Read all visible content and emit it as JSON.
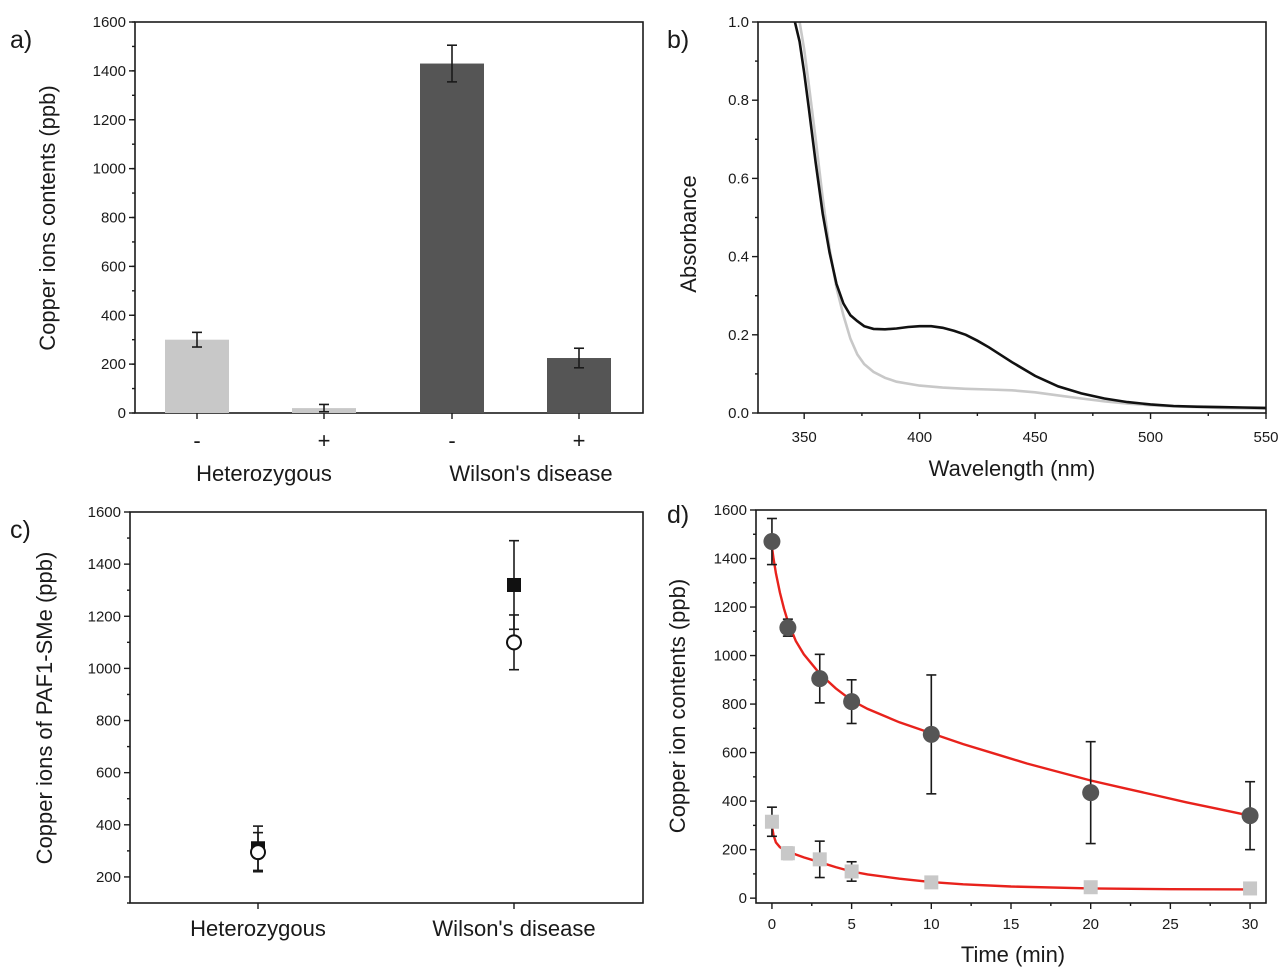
{
  "chart_data": [
    {
      "panel": "a)",
      "type": "bar",
      "ylabel": "Copper ions contents (ppb)",
      "ylim": [
        0,
        1600
      ],
      "yticks": [
        "0",
        "200",
        "400",
        "600",
        "800",
        "1000",
        "1200",
        "1400",
        "1600"
      ],
      "bars": [
        {
          "sign": "-",
          "value": 300,
          "error": 30,
          "color": "#c8c8c8"
        },
        {
          "sign": "+",
          "value": 20,
          "error": 15,
          "color": "#c8c8c8"
        },
        {
          "sign": "-",
          "value": 1430,
          "error": 75,
          "color": "#555555"
        },
        {
          "sign": "+",
          "value": 225,
          "error": 40,
          "color": "#555555"
        }
      ],
      "groups": [
        "Heterozygous",
        "Wilson's disease"
      ]
    },
    {
      "panel": "b)",
      "type": "line",
      "xlabel": "Wavelength (nm)",
      "ylabel": "Absorbance",
      "xlim": [
        330,
        550
      ],
      "ylim": [
        0,
        1.0
      ],
      "xticks": [
        "350",
        "400",
        "450",
        "500",
        "550"
      ],
      "yticks": [
        "0.0",
        "0.2",
        "0.4",
        "0.6",
        "0.8",
        "1.0"
      ],
      "series": [
        {
          "color": "#c8c8c8",
          "x": [
            348,
            350,
            352,
            355,
            358,
            361,
            364,
            367,
            370,
            373,
            376,
            380,
            385,
            390,
            400,
            410,
            420,
            430,
            440,
            450,
            460,
            470,
            480,
            490,
            500,
            510,
            520,
            530,
            540,
            550
          ],
          "y": [
            1.0,
            0.93,
            0.84,
            0.7,
            0.55,
            0.42,
            0.32,
            0.25,
            0.19,
            0.15,
            0.125,
            0.105,
            0.09,
            0.08,
            0.07,
            0.065,
            0.062,
            0.06,
            0.058,
            0.053,
            0.045,
            0.037,
            0.03,
            0.024,
            0.02,
            0.017,
            0.015,
            0.013,
            0.012,
            0.011
          ]
        },
        {
          "color": "#111111",
          "x": [
            346,
            348,
            350,
            352,
            355,
            358,
            361,
            364,
            367,
            370,
            373,
            376,
            380,
            385,
            390,
            395,
            400,
            405,
            410,
            415,
            420,
            425,
            430,
            440,
            450,
            460,
            470,
            480,
            490,
            500,
            510,
            520,
            530,
            540,
            550
          ],
          "y": [
            1.0,
            0.95,
            0.87,
            0.78,
            0.64,
            0.51,
            0.41,
            0.33,
            0.28,
            0.25,
            0.235,
            0.222,
            0.215,
            0.214,
            0.216,
            0.22,
            0.222,
            0.222,
            0.218,
            0.21,
            0.2,
            0.185,
            0.168,
            0.13,
            0.095,
            0.068,
            0.05,
            0.037,
            0.028,
            0.022,
            0.018,
            0.016,
            0.015,
            0.014,
            0.013
          ]
        }
      ]
    },
    {
      "panel": "c)",
      "type": "scatter",
      "ylabel": "Copper ions of PAF1-SMe (ppb)",
      "ylim": [
        100,
        1600
      ],
      "yticks": [
        "200",
        "400",
        "600",
        "800",
        "1000",
        "1200",
        "1400",
        "1600"
      ],
      "categories": [
        "Heterozygous",
        "Wilson's disease"
      ],
      "series": [
        {
          "marker": "filled-square",
          "values": [
            310,
            1320
          ],
          "errors": [
            85,
            170
          ]
        },
        {
          "marker": "open-circle",
          "values": [
            295,
            1100
          ],
          "errors": [
            75,
            105
          ]
        }
      ]
    },
    {
      "panel": "d)",
      "type": "scatter",
      "xlabel": "Time (min)",
      "ylabel": "Copper ion contents (ppb)",
      "xlim": [
        -1,
        31
      ],
      "ylim": [
        -20,
        1600
      ],
      "xticks": [
        "0",
        "5",
        "10",
        "15",
        "20",
        "25",
        "30"
      ],
      "yticks": [
        "0",
        "200",
        "400",
        "600",
        "800",
        "1000",
        "1200",
        "1400",
        "1600"
      ],
      "series": [
        {
          "marker": "circle",
          "color": "#555555",
          "x": [
            0,
            1,
            3,
            5,
            10,
            20,
            30
          ],
          "y": [
            1470,
            1115,
            905,
            810,
            675,
            435,
            340
          ],
          "errors": [
            95,
            35,
            100,
            90,
            245,
            210,
            140
          ]
        },
        {
          "marker": "square",
          "color": "#c8c8c8",
          "x": [
            0,
            1,
            3,
            5,
            10,
            20,
            30
          ],
          "y": [
            315,
            185,
            160,
            110,
            65,
            45,
            40
          ],
          "errors": [
            60,
            25,
            75,
            40,
            20,
            20,
            20
          ]
        }
      ],
      "fits": [
        {
          "color": "#e8221c",
          "x": [
            0,
            0.1,
            0.25,
            0.5,
            0.75,
            1,
            1.5,
            2,
            3,
            4,
            5,
            6,
            8,
            10,
            12,
            14,
            16,
            18,
            20,
            22,
            24,
            26,
            28,
            30
          ],
          "y": [
            1450,
            1400,
            1340,
            1260,
            1195,
            1140,
            1060,
            1005,
            925,
            865,
            815,
            780,
            725,
            680,
            635,
            595,
            555,
            520,
            485,
            455,
            425,
            395,
            368,
            340
          ]
        },
        {
          "color": "#e8221c",
          "x": [
            0,
            0.1,
            0.25,
            0.5,
            0.75,
            1,
            1.5,
            2,
            3,
            4,
            5,
            6,
            8,
            10,
            12,
            15,
            20,
            25,
            30
          ],
          "y": [
            300,
            260,
            230,
            210,
            200,
            193,
            180,
            168,
            148,
            128,
            110,
            98,
            80,
            66,
            57,
            48,
            40,
            37,
            36
          ]
        }
      ]
    }
  ]
}
